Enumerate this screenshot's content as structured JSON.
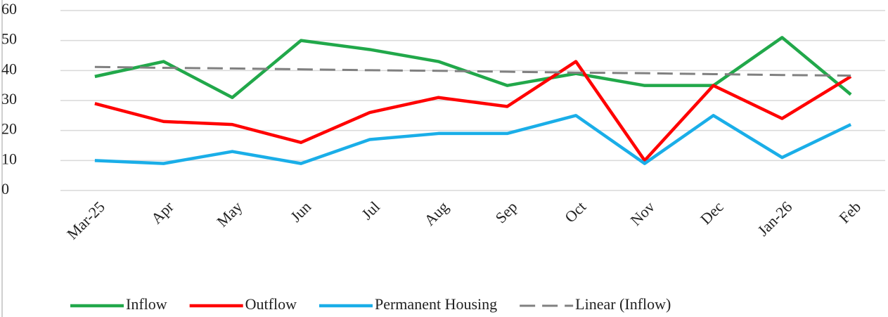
{
  "chart_data": {
    "type": "line",
    "categories": [
      "Mar-25",
      "Apr",
      "May",
      "Jun",
      "Jul",
      "Aug",
      "Sep",
      "Oct",
      "Nov",
      "Dec",
      "Jan-26",
      "Feb"
    ],
    "series": [
      {
        "name": "Inflow",
        "color": "#21a84a",
        "values": [
          38,
          43,
          31,
          50,
          47,
          43,
          35,
          39,
          35,
          35,
          51,
          32
        ]
      },
      {
        "name": "Outflow",
        "color": "#ff0000",
        "values": [
          29,
          23,
          22,
          16,
          26,
          31,
          28,
          43,
          10,
          35,
          24,
          38
        ]
      },
      {
        "name": "Permanent Housing",
        "color": "#1aaee8",
        "values": [
          10,
          9,
          13,
          9,
          17,
          19,
          19,
          25,
          9,
          25,
          11,
          22
        ]
      },
      {
        "name": "Linear (Inflow)",
        "color": "#808080",
        "dashed": true,
        "values": [
          41.2,
          40.9,
          40.7,
          40.4,
          40.1,
          39.9,
          39.6,
          39.3,
          39.1,
          38.8,
          38.5,
          38.3
        ]
      }
    ],
    "ylim": [
      0,
      60
    ],
    "yticks": [
      0,
      10,
      20,
      30,
      40,
      50,
      60
    ],
    "grid": true,
    "legend": "bottom"
  }
}
